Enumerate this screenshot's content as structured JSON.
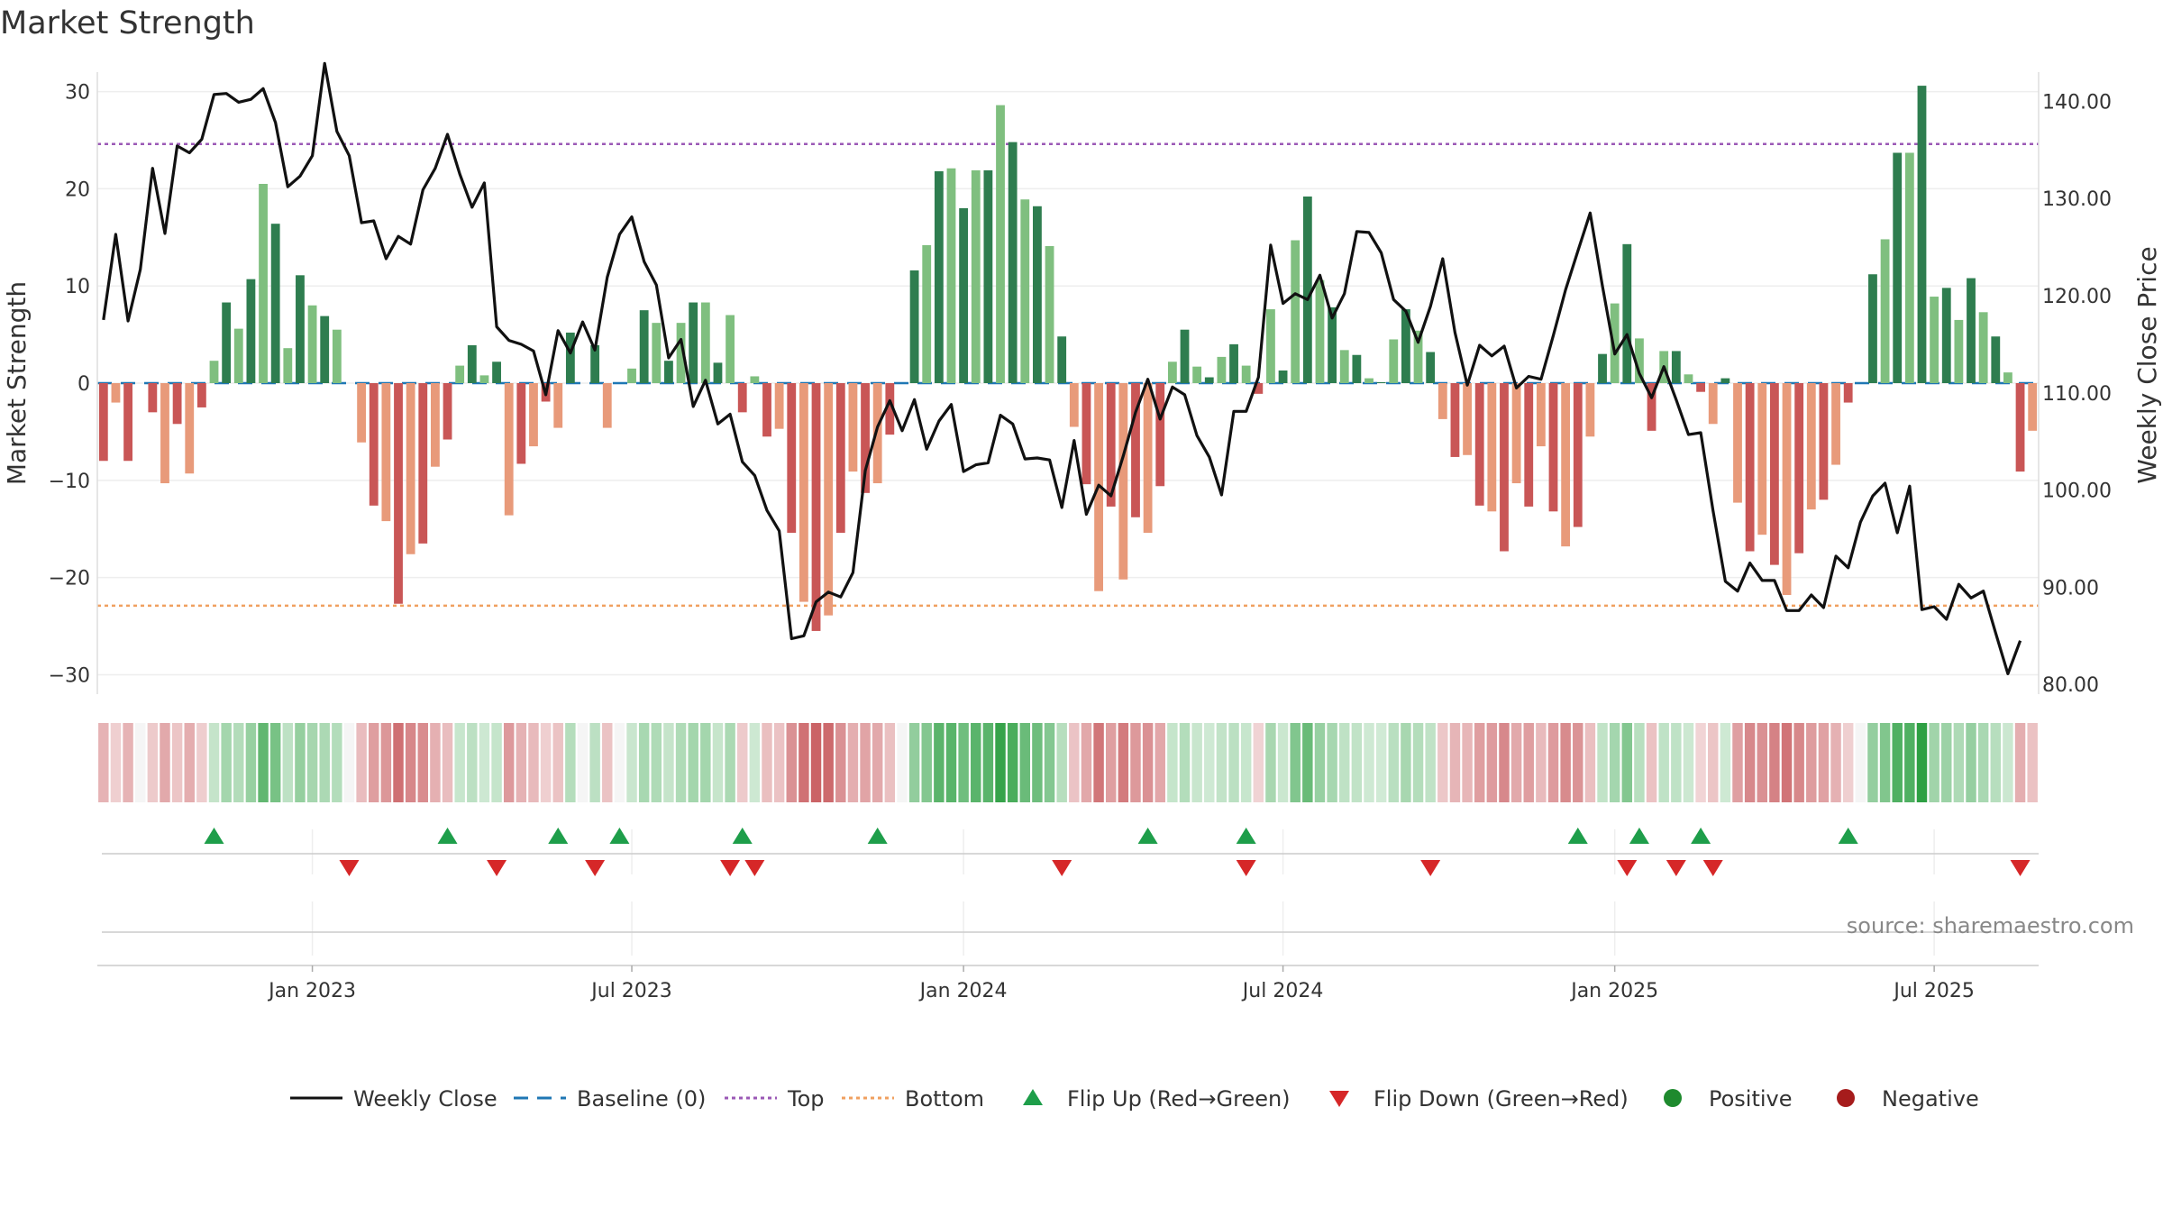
{
  "chart_data": {
    "type": "bar",
    "title": "Market Strength",
    "source": "source: sharemaestro.com",
    "y_left": {
      "label": "Market Strength",
      "range": [
        -32,
        32
      ],
      "ticks": [
        30,
        20,
        10,
        0,
        -10,
        -20,
        -30
      ],
      "tick_labels": [
        "30",
        "20",
        "10",
        "0",
        "−10",
        "−20",
        "−30"
      ]
    },
    "y_right": {
      "label": "Weekly Close Price",
      "range": [
        79,
        143
      ],
      "ticks": [
        140,
        130,
        120,
        110,
        100,
        90,
        80
      ],
      "tick_labels": [
        "140.00",
        "130.00",
        "120.00",
        "110.00",
        "100.00",
        "90.00",
        "80.00"
      ]
    },
    "x_ticks": [
      {
        "label": "Jan 2023",
        "index": 17
      },
      {
        "label": "Jul 2023",
        "index": 43
      },
      {
        "label": "Jan 2024",
        "index": 70
      },
      {
        "label": "Jul 2024",
        "index": 96
      },
      {
        "label": "Jan 2025",
        "index": 123
      },
      {
        "label": "Jul 2025",
        "index": 149
      }
    ],
    "top_line": 24.6,
    "bottom_line": -22.9,
    "strength": [
      -8,
      -2,
      -8,
      0,
      -3,
      -10.3,
      -4.2,
      -9.3,
      -2.5,
      2.3,
      8.3,
      5.6,
      10.7,
      20.5,
      16.4,
      3.6,
      11.1,
      8,
      6.9,
      5.5,
      0,
      -6.1,
      -12.6,
      -14.2,
      -22.7,
      -17.6,
      -16.5,
      -8.6,
      -5.8,
      1.8,
      3.9,
      0.8,
      2.2,
      -13.6,
      -8.3,
      -6.5,
      -1.9,
      -4.6,
      5.2,
      0,
      3.9,
      -4.6,
      0,
      1.5,
      7.5,
      6.2,
      2.3,
      6.2,
      8.3,
      8.3,
      2.1,
      7,
      -3,
      0.7,
      -5.5,
      -4.7,
      -15.4,
      -22.5,
      -25.5,
      -23.9,
      -15.4,
      -9.1,
      -11.3,
      -10.3,
      -5.3,
      0,
      11.6,
      14.2,
      21.8,
      22.1,
      18,
      21.9,
      21.9,
      28.6,
      24.8,
      18.9,
      18.2,
      14.1,
      4.8,
      -4.5,
      -10.4,
      -21.4,
      -12.7,
      -20.2,
      -13.8,
      -15.4,
      -10.6,
      2.2,
      5.5,
      1.7,
      0.6,
      2.7,
      4,
      1.8,
      -1.1,
      7.6,
      1.3,
      14.7,
      19.2,
      10.6,
      7.8,
      3.4,
      2.9,
      0.5,
      0.1,
      4.5,
      7.6,
      5.4,
      3.2,
      -3.7,
      -7.6,
      -7.4,
      -12.6,
      -13.2,
      -17.3,
      -10.3,
      -12.7,
      -6.5,
      -13.2,
      -16.8,
      -14.8,
      -5.5,
      3,
      8.2,
      14.3,
      4.6,
      -4.9,
      3.3,
      3.3,
      0.9,
      -0.9,
      -4.2,
      0.5,
      -12.3,
      -17.3,
      -15.6,
      -18.7,
      -21.8,
      -17.5,
      -13,
      -12,
      -8.4,
      -2,
      0,
      11.2,
      14.8,
      23.7,
      23.7,
      30.6,
      8.9,
      9.8,
      6.5,
      10.8,
      7.3,
      4.8,
      1.1,
      -9.1,
      -4.9
    ],
    "close": [
      117.5,
      126.3,
      117.4,
      122.7,
      133.1,
      126.4,
      135.4,
      134.7,
      136.1,
      140.7,
      140.8,
      139.9,
      140.2,
      141.3,
      137.8,
      131.2,
      132.3,
      134.4,
      143.9,
      136.9,
      134.4,
      127.5,
      127.7,
      123.8,
      126.1,
      125.3,
      130.9,
      133.1,
      136.6,
      132.5,
      129.1,
      131.6,
      116.8,
      115.4,
      115,
      114.3,
      109.8,
      116.4,
      114.1,
      117.3,
      114.4,
      121.9,
      126.3,
      128.1,
      123.5,
      121.1,
      113.6,
      115.5,
      108.6,
      111.3,
      106.8,
      107.8,
      102.9,
      101.5,
      97.9,
      95.8,
      84.7,
      85,
      88.5,
      89.5,
      89,
      91.5,
      102,
      106.5,
      109.2,
      106.1,
      109.3,
      104.2,
      107.1,
      108.8,
      101.9,
      102.6,
      102.8,
      107.7,
      106.8,
      103.2,
      103.3,
      103.1,
      98.2,
      105.1,
      97.5,
      100.5,
      99.4,
      103.5,
      108,
      111.4,
      107.3,
      110.6,
      109.8,
      105.6,
      103.4,
      99.5,
      108.1,
      108.1,
      111.6,
      125.2,
      119.2,
      120.2,
      119.6,
      122.1,
      117.7,
      120.2,
      126.6,
      126.5,
      124.4,
      119.6,
      118.4,
      115.2,
      118.9,
      123.8,
      116.2,
      110.8,
      114.9,
      113.8,
      114.8,
      110.5,
      111.7,
      111.4,
      115.9,
      120.6,
      124.6,
      128.5,
      121,
      114,
      116,
      112,
      109.5,
      112.7,
      109.3,
      105.7,
      105.9,
      97.9,
      90.6,
      89.6,
      92.5,
      90.7,
      90.7,
      87.6,
      87.6,
      89.2,
      87.9,
      93.2,
      92,
      96.7,
      99.4,
      100.7,
      95.6,
      100.4,
      87.7,
      88,
      86.7,
      90.3,
      88.9,
      89.6,
      85.3,
      81.1,
      84.5
    ],
    "strip_values": [
      -8,
      -2,
      -8,
      0,
      -3,
      -10.3,
      -4.2,
      -9.3,
      -2.5,
      2.3,
      8.3,
      5.6,
      10.7,
      20.5,
      16.4,
      3.6,
      11.1,
      8,
      6.9,
      5.5,
      0,
      -6.1,
      -12.6,
      -14.2,
      -22.7,
      -17.6,
      -16.5,
      -8.6,
      -5.8,
      1.8,
      3.9,
      0.8,
      2.2,
      -13.6,
      -8.3,
      -6.5,
      -1.9,
      -4.6,
      5.2,
      0,
      3.9,
      -4.6,
      0,
      1.5,
      7.5,
      6.2,
      2.3,
      6.2,
      8.3,
      8.3,
      2.1,
      7,
      -3,
      0.7,
      -5.5,
      -4.7,
      -15.4,
      -22.5,
      -25.5,
      -23.9,
      -15.4,
      -9.1,
      -11.3,
      -10.3,
      -5.3,
      0,
      11.6,
      14.2,
      21.8,
      22.1,
      18,
      21.9,
      21.9,
      28.6,
      24.8,
      18.9,
      18.2,
      14.1,
      4.8,
      -4.5,
      -10.4,
      -21.4,
      -12.7,
      -20.2,
      -13.8,
      -15.4,
      -10.6,
      2.2,
      5.5,
      1.7,
      0.6,
      2.7,
      4,
      1.8,
      -1.1,
      7.6,
      1.3,
      14.7,
      19.2,
      10.6,
      7.8,
      3.4,
      2.9,
      0.5,
      0.1,
      4.5,
      7.6,
      5.4,
      3.2,
      -3.7,
      -7.6,
      -7.4,
      -12.6,
      -13.2,
      -17.3,
      -10.3,
      -12.7,
      -6.5,
      -13.2,
      -16.8,
      -14.8,
      -5.5,
      3,
      8.2,
      14.3,
      4.6,
      -4.9,
      3.3,
      3.3,
      0.9,
      -0.9,
      -4.2,
      0.5,
      -12.3,
      -17.3,
      -15.6,
      -18.7,
      -21.8,
      -17.5,
      -13,
      -12,
      -8.4,
      -2,
      0,
      11.2,
      14.8,
      23.7,
      23.7,
      30.6,
      8.9,
      9.8,
      6.5,
      10.8,
      7.3,
      4.8,
      1.1,
      -9.1,
      -4.9
    ],
    "flip_up": [
      9,
      28,
      37,
      42,
      52,
      63,
      85,
      93,
      120,
      125,
      130,
      142
    ],
    "flip_down": [
      20,
      32,
      40,
      51,
      53,
      78,
      93,
      108,
      124,
      128,
      131,
      156
    ],
    "legend": [
      "Weekly Close",
      "Baseline (0)",
      "Top",
      "Bottom",
      "Flip Up (Red→Green)",
      "Flip Down (Green→Red)",
      "Positive",
      "Negative"
    ],
    "colors": {
      "pos_dark": "#2e7d4f",
      "pos_light": "#7fbf7f",
      "neg_dark": "#c95656",
      "neg_light": "#e89a7a",
      "line": "#111111",
      "baseline": "#1f77b4",
      "top": "#9b59b6",
      "bottom": "#f0a060",
      "flip_up": "#1e9e4a",
      "flip_down": "#d62728",
      "positive": "#1e8a2e",
      "negative": "#a61c1c"
    }
  }
}
